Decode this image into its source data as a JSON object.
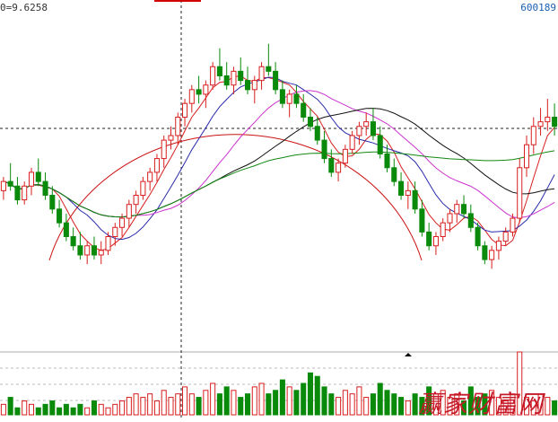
{
  "header": {
    "left_label": "0=9.6258",
    "right_label": "600189"
  },
  "watermark": "赢家财富网",
  "colors": {
    "up": "#d81e1e",
    "down": "#0a8a0a",
    "ma5": "#d81e1e",
    "ma10": "#2a2aaa",
    "ma20": "#cc33cc",
    "ma30": "#111111",
    "ma60": "#118811",
    "arc": "#cc1111",
    "crosshair": "#222222"
  },
  "chart_data": {
    "type": "candlestick",
    "title": "",
    "price_range": [
      5.8,
      11.9
    ],
    "candles": [
      [
        8.1,
        8.4,
        7.9,
        8.3
      ],
      [
        8.3,
        8.7,
        8.1,
        8.2
      ],
      [
        8.2,
        8.4,
        7.8,
        7.9
      ],
      [
        7.9,
        8.3,
        7.8,
        8.2
      ],
      [
        8.2,
        8.6,
        8.0,
        8.5
      ],
      [
        8.5,
        8.8,
        8.2,
        8.3
      ],
      [
        8.3,
        8.5,
        7.9,
        8.0
      ],
      [
        8.0,
        8.2,
        7.6,
        7.7
      ],
      [
        7.7,
        7.9,
        7.3,
        7.4
      ],
      [
        7.4,
        7.6,
        7.0,
        7.1
      ],
      [
        7.1,
        7.3,
        6.8,
        6.9
      ],
      [
        6.9,
        7.2,
        6.6,
        6.7
      ],
      [
        6.7,
        7.0,
        6.5,
        6.9
      ],
      [
        6.9,
        7.1,
        6.6,
        6.7
      ],
      [
        6.7,
        7.0,
        6.5,
        6.8
      ],
      [
        6.8,
        7.2,
        6.7,
        7.1
      ],
      [
        7.1,
        7.4,
        6.9,
        7.3
      ],
      [
        7.3,
        7.6,
        7.1,
        7.5
      ],
      [
        7.5,
        7.9,
        7.3,
        7.8
      ],
      [
        7.8,
        8.1,
        7.6,
        8.0
      ],
      [
        8.0,
        8.4,
        7.9,
        8.3
      ],
      [
        8.3,
        8.6,
        8.1,
        8.5
      ],
      [
        8.5,
        8.9,
        8.3,
        8.8
      ],
      [
        8.8,
        9.3,
        8.6,
        9.2
      ],
      [
        9.2,
        9.5,
        9.0,
        9.3
      ],
      [
        9.3,
        9.8,
        9.1,
        9.7
      ],
      [
        9.7,
        10.1,
        9.5,
        10.0
      ],
      [
        10.0,
        10.4,
        9.8,
        10.3
      ],
      [
        10.3,
        10.6,
        10.0,
        10.2
      ],
      [
        10.2,
        10.5,
        9.9,
        10.4
      ],
      [
        10.4,
        10.9,
        10.3,
        10.8
      ],
      [
        10.8,
        11.2,
        10.5,
        10.6
      ],
      [
        10.6,
        10.9,
        10.3,
        10.4
      ],
      [
        10.4,
        10.8,
        10.2,
        10.7
      ],
      [
        10.7,
        11.0,
        10.4,
        10.5
      ],
      [
        10.5,
        10.8,
        10.2,
        10.3
      ],
      [
        10.3,
        10.6,
        10.0,
        10.5
      ],
      [
        10.5,
        10.9,
        10.3,
        10.8
      ],
      [
        10.8,
        11.3,
        10.6,
        10.7
      ],
      [
        10.7,
        10.9,
        10.2,
        10.3
      ],
      [
        10.3,
        10.5,
        9.9,
        10.0
      ],
      [
        10.0,
        10.3,
        9.7,
        10.2
      ],
      [
        10.2,
        10.4,
        9.9,
        10.0
      ],
      [
        10.0,
        10.2,
        9.6,
        9.7
      ],
      [
        9.7,
        9.9,
        9.4,
        9.5
      ],
      [
        9.5,
        9.7,
        9.1,
        9.2
      ],
      [
        9.2,
        9.4,
        8.7,
        8.8
      ],
      [
        8.8,
        9.0,
        8.4,
        8.5
      ],
      [
        8.5,
        8.8,
        8.3,
        8.7
      ],
      [
        8.7,
        9.1,
        8.6,
        9.0
      ],
      [
        9.0,
        9.4,
        8.9,
        9.3
      ],
      [
        9.3,
        9.6,
        9.1,
        9.5
      ],
      [
        9.5,
        9.8,
        9.3,
        9.6
      ],
      [
        9.6,
        9.9,
        9.2,
        9.3
      ],
      [
        9.3,
        9.5,
        8.8,
        8.9
      ],
      [
        8.9,
        9.1,
        8.5,
        8.6
      ],
      [
        8.6,
        8.8,
        8.2,
        8.3
      ],
      [
        8.3,
        8.5,
        7.9,
        8.0
      ],
      [
        8.0,
        8.3,
        7.7,
        8.1
      ],
      [
        8.1,
        8.3,
        7.6,
        7.7
      ],
      [
        7.7,
        7.9,
        7.1,
        7.2
      ],
      [
        7.2,
        7.4,
        6.8,
        6.9
      ],
      [
        6.9,
        7.2,
        6.7,
        7.1
      ],
      [
        7.1,
        7.5,
        7.0,
        7.4
      ],
      [
        7.4,
        7.7,
        7.2,
        7.6
      ],
      [
        7.6,
        7.9,
        7.4,
        7.8
      ],
      [
        7.8,
        8.0,
        7.5,
        7.6
      ],
      [
        7.6,
        7.8,
        7.2,
        7.3
      ],
      [
        7.3,
        7.4,
        6.8,
        6.9
      ],
      [
        6.9,
        7.0,
        6.5,
        6.6
      ],
      [
        6.6,
        6.9,
        6.4,
        6.8
      ],
      [
        6.8,
        7.1,
        6.6,
        7.0
      ],
      [
        7.0,
        7.3,
        6.9,
        7.2
      ],
      [
        7.2,
        7.6,
        7.1,
        7.5
      ],
      [
        7.5,
        8.8,
        7.4,
        8.6
      ],
      [
        8.6,
        9.3,
        8.4,
        9.1
      ],
      [
        9.1,
        9.7,
        8.9,
        9.5
      ],
      [
        9.5,
        9.9,
        9.3,
        9.6
      ],
      [
        9.6,
        10.1,
        9.4,
        9.7
      ],
      [
        9.7,
        10.0,
        9.3,
        9.5
      ]
    ],
    "volumes": [
      3,
      5,
      2,
      4,
      3,
      2,
      3,
      4,
      2,
      3,
      2,
      3,
      2,
      4,
      3,
      2,
      3,
      4,
      5,
      6,
      5,
      6,
      4,
      7,
      5,
      6,
      8,
      6,
      5,
      7,
      9,
      6,
      8,
      7,
      5,
      6,
      8,
      9,
      6,
      7,
      10,
      8,
      7,
      9,
      12,
      11,
      8,
      6,
      5,
      7,
      6,
      8,
      5,
      6,
      9,
      7,
      6,
      5,
      4,
      6,
      5,
      8,
      6,
      7,
      5,
      6,
      4,
      8,
      5,
      6,
      7,
      5,
      4,
      6,
      18,
      5,
      4,
      6,
      5,
      4
    ],
    "volume_max": 18
  }
}
